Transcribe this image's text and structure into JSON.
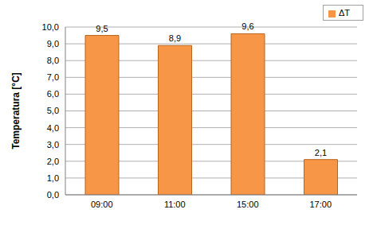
{
  "chart_data": {
    "type": "bar",
    "y_label": "Temperatura [°C]",
    "categories": [
      "09:00",
      "11:00",
      "15:00",
      "17:00"
    ],
    "series": [
      {
        "name": "ΔT",
        "color": "#f79646",
        "values": [
          9.5,
          8.9,
          9.6,
          2.1
        ],
        "value_labels": [
          "9,5",
          "8,9",
          "9,6",
          "2,1"
        ]
      }
    ],
    "ylim": [
      0,
      10
    ],
    "yticks": [
      {
        "value": 0,
        "label": "0,0"
      },
      {
        "value": 1,
        "label": "1,0"
      },
      {
        "value": 2,
        "label": "2,0"
      },
      {
        "value": 3,
        "label": "3,0"
      },
      {
        "value": 4,
        "label": "4,0"
      },
      {
        "value": 5,
        "label": "5,0"
      },
      {
        "value": 6,
        "label": "6,0"
      },
      {
        "value": 7,
        "label": "7,0"
      },
      {
        "value": 8,
        "label": "8,0"
      },
      {
        "value": 9,
        "label": "9,0"
      },
      {
        "value": 10,
        "label": "10,0"
      }
    ],
    "grid": true,
    "legend": "top-right",
    "data_labels": true
  }
}
